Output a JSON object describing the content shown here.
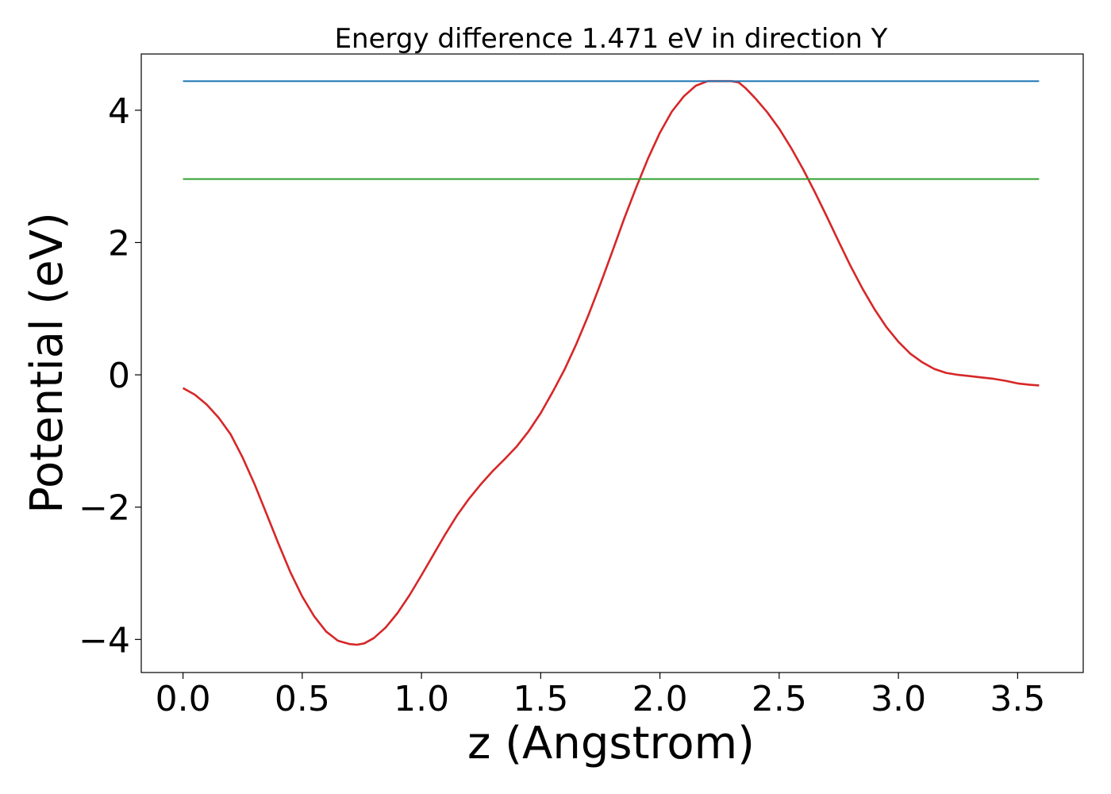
{
  "chart_data": {
    "type": "line",
    "title": "Energy difference 1.471 eV in direction Y",
    "xlabel": "z (Angstrom)",
    "ylabel": "Potential (eV)",
    "xlim": [
      -0.175,
      3.775
    ],
    "ylim": [
      -4.5,
      4.85
    ],
    "xticks": [
      0.0,
      0.5,
      1.0,
      1.5,
      2.0,
      2.5,
      3.0,
      3.5
    ],
    "xtick_labels": [
      "0.0",
      "0.5",
      "1.0",
      "1.5",
      "2.0",
      "2.5",
      "3.0",
      "3.5"
    ],
    "yticks": [
      -4,
      -2,
      0,
      2,
      4
    ],
    "ytick_labels": [
      "−4",
      "−2",
      "0",
      "2",
      "4"
    ],
    "grid": false,
    "series": [
      {
        "color": "#d62728",
        "x": [
          0.0,
          0.05,
          0.1,
          0.15,
          0.2,
          0.25,
          0.3,
          0.35,
          0.4,
          0.45,
          0.5,
          0.55,
          0.6,
          0.65,
          0.7,
          0.73,
          0.76,
          0.8,
          0.85,
          0.9,
          0.95,
          1.0,
          1.05,
          1.1,
          1.15,
          1.2,
          1.25,
          1.3,
          1.35,
          1.4,
          1.45,
          1.5,
          1.55,
          1.6,
          1.65,
          1.7,
          1.75,
          1.8,
          1.85,
          1.9,
          1.95,
          2.0,
          2.05,
          2.1,
          2.15,
          2.2,
          2.25,
          2.3,
          2.33,
          2.36,
          2.4,
          2.45,
          2.5,
          2.55,
          2.6,
          2.65,
          2.7,
          2.75,
          2.8,
          2.85,
          2.9,
          2.95,
          3.0,
          3.05,
          3.1,
          3.15,
          3.2,
          3.25,
          3.3,
          3.35,
          3.4,
          3.45,
          3.5,
          3.55,
          3.59
        ],
        "y": [
          -0.2,
          -0.3,
          -0.45,
          -0.65,
          -0.9,
          -1.25,
          -1.65,
          -2.1,
          -2.55,
          -2.98,
          -3.35,
          -3.65,
          -3.88,
          -4.02,
          -4.07,
          -4.08,
          -4.06,
          -3.98,
          -3.82,
          -3.6,
          -3.33,
          -3.03,
          -2.72,
          -2.41,
          -2.12,
          -1.87,
          -1.65,
          -1.45,
          -1.27,
          -1.08,
          -0.85,
          -0.58,
          -0.26,
          0.08,
          0.47,
          0.9,
          1.37,
          1.86,
          2.36,
          2.83,
          3.27,
          3.66,
          3.98,
          4.21,
          4.37,
          4.44,
          4.44,
          4.44,
          4.42,
          4.33,
          4.18,
          3.97,
          3.72,
          3.43,
          3.11,
          2.76,
          2.39,
          2.01,
          1.64,
          1.3,
          0.99,
          0.72,
          0.5,
          0.32,
          0.19,
          0.09,
          0.03,
          0.0,
          -0.02,
          -0.04,
          -0.06,
          -0.09,
          -0.13,
          -0.15,
          -0.16
        ]
      },
      {
        "color": "#1f77b4",
        "x": [
          0.0,
          3.59
        ],
        "y": [
          4.44,
          4.44
        ]
      },
      {
        "color": "#2ca02c",
        "x": [
          0.0,
          3.59
        ],
        "y": [
          2.96,
          2.96
        ]
      }
    ]
  }
}
